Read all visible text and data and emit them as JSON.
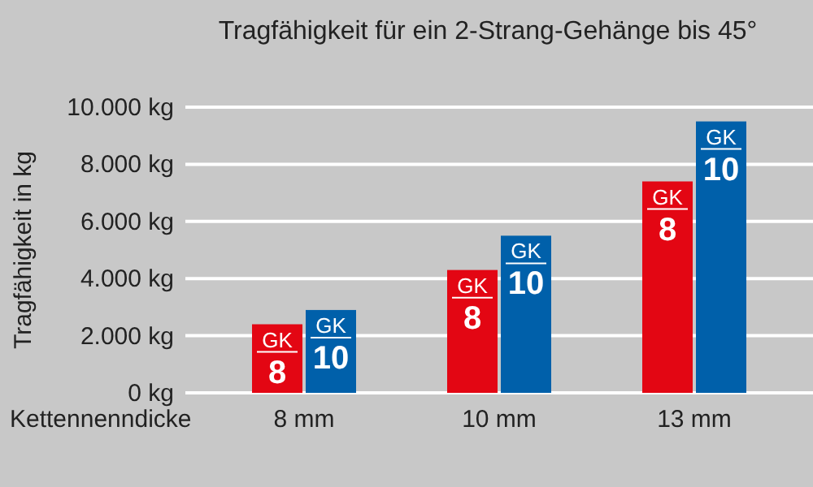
{
  "chart_data": {
    "type": "bar",
    "title": "Tragfähigkeit für ein 2-Strang-Gehänge bis 45°",
    "xlabel": "Kettennenndicke",
    "ylabel": "Tragfähigkeit in kg",
    "categories": [
      "8 mm",
      "10 mm",
      "13 mm"
    ],
    "series": [
      {
        "name": "GK 8",
        "color": "#e30613",
        "values": [
          2400,
          4300,
          7400
        ]
      },
      {
        "name": "GK 10",
        "color": "#0060aa",
        "values": [
          2900,
          5500,
          9500
        ]
      }
    ],
    "ylim": [
      0,
      10000
    ],
    "yticks": [
      {
        "value": 0,
        "label": "0 kg"
      },
      {
        "value": 2000,
        "label": "2.000 kg"
      },
      {
        "value": 4000,
        "label": "4.000 kg"
      },
      {
        "value": 6000,
        "label": "6.000 kg"
      },
      {
        "value": 8000,
        "label": "8.000 kg"
      },
      {
        "value": 10000,
        "label": "10.000 kg"
      }
    ],
    "grid": "y"
  }
}
